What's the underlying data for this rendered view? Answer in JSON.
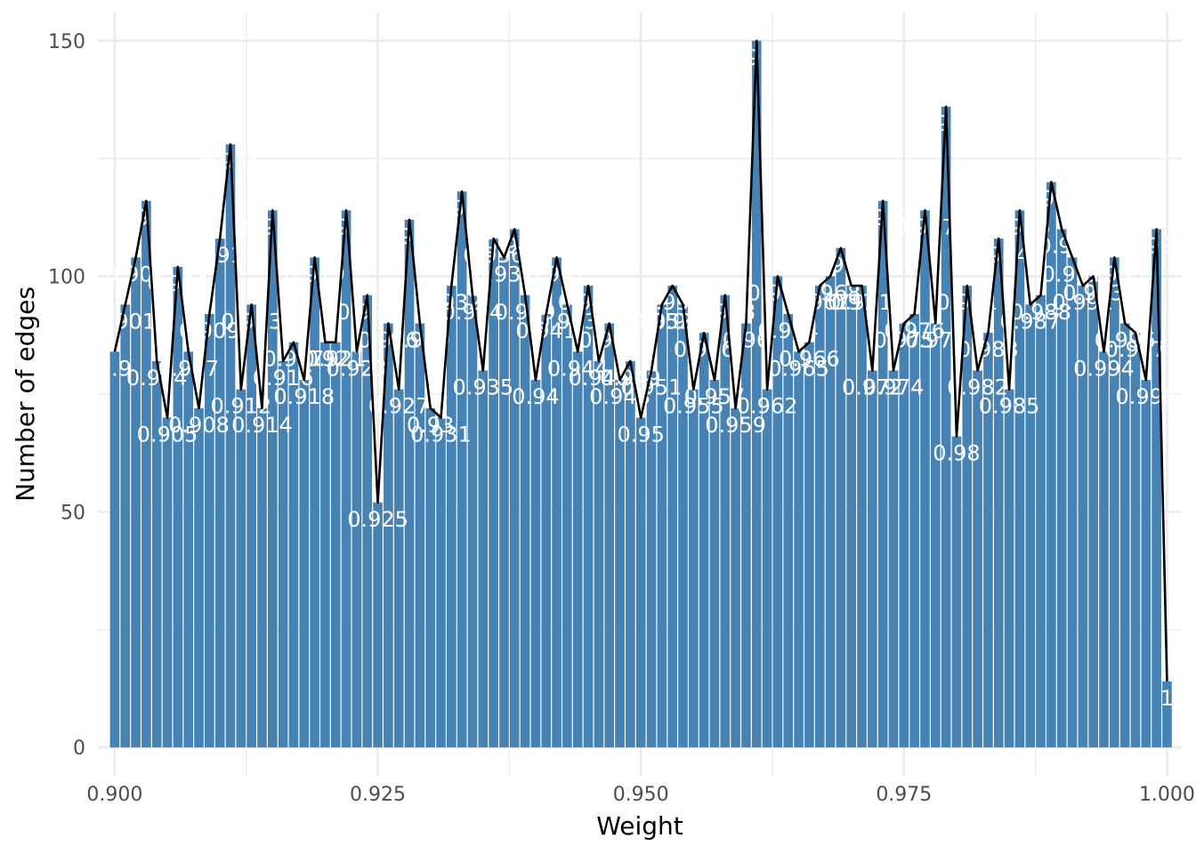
{
  "chart_data": {
    "type": "bar",
    "title": "",
    "xlabel": "Weight",
    "ylabel": "Number of edges",
    "xlim": [
      0.8984,
      1.0014
    ],
    "ylim": [
      -6,
      156
    ],
    "x_ticks": [
      {
        "value": 0.9,
        "label": "0.900"
      },
      {
        "value": 0.925,
        "label": "0.925"
      },
      {
        "value": 0.95,
        "label": "0.950"
      },
      {
        "value": 0.975,
        "label": "0.975"
      },
      {
        "value": 1.0,
        "label": "1.000"
      }
    ],
    "y_ticks": [
      {
        "value": 0,
        "label": "0"
      },
      {
        "value": 50,
        "label": "50"
      },
      {
        "value": 100,
        "label": "100"
      },
      {
        "value": 150,
        "label": "150"
      }
    ],
    "grid": true,
    "bar_color": "#4682B4",
    "line_color": "#000000",
    "label_color": "#FFFFFF",
    "x": [
      0.9,
      0.901,
      0.902,
      0.903,
      0.904,
      0.905,
      0.906,
      0.907,
      0.908,
      0.909,
      0.91,
      0.911,
      0.912,
      0.913,
      0.914,
      0.915,
      0.916,
      0.917,
      0.918,
      0.919,
      0.92,
      0.921,
      0.922,
      0.923,
      0.924,
      0.925,
      0.926,
      0.927,
      0.928,
      0.929,
      0.93,
      0.931,
      0.932,
      0.933,
      0.934,
      0.935,
      0.936,
      0.937,
      0.938,
      0.939,
      0.94,
      0.941,
      0.942,
      0.943,
      0.944,
      0.945,
      0.946,
      0.947,
      0.948,
      0.949,
      0.95,
      0.951,
      0.952,
      0.953,
      0.954,
      0.955,
      0.956,
      0.957,
      0.958,
      0.959,
      0.96,
      0.961,
      0.962,
      0.963,
      0.964,
      0.965,
      0.966,
      0.967,
      0.968,
      0.969,
      0.97,
      0.971,
      0.972,
      0.973,
      0.974,
      0.975,
      0.976,
      0.977,
      0.978,
      0.979,
      0.98,
      0.981,
      0.982,
      0.983,
      0.984,
      0.985,
      0.986,
      0.987,
      0.988,
      0.989,
      0.99,
      0.991,
      0.992,
      0.993,
      0.994,
      0.995,
      0.996,
      0.997,
      0.998,
      0.999,
      1.0
    ],
    "values": [
      84,
      94,
      104,
      116,
      82,
      70,
      102,
      84,
      72,
      92,
      108,
      128,
      76,
      94,
      72,
      114,
      82,
      86,
      78,
      104,
      86,
      86,
      114,
      84,
      96,
      52,
      90,
      76,
      112,
      90,
      72,
      70,
      98,
      118,
      96,
      80,
      108,
      104,
      110,
      96,
      78,
      92,
      104,
      94,
      84,
      98,
      82,
      90,
      78,
      82,
      70,
      80,
      94,
      98,
      94,
      76,
      88,
      78,
      96,
      72,
      90,
      150,
      76,
      100,
      92,
      84,
      86,
      98,
      100,
      106,
      98,
      98,
      80,
      116,
      80,
      90,
      92,
      114,
      90,
      136,
      66,
      98,
      80,
      88,
      108,
      76,
      114,
      94,
      96,
      120,
      110,
      104,
      98,
      100,
      84,
      104,
      90,
      88,
      78,
      110,
      14
    ],
    "labels": [
      "0.9",
      "0.901",
      "0.902",
      "0.903",
      "0.904",
      "0.905",
      "0.906",
      "0.907",
      "0.908",
      "0.909",
      "0.91",
      "0.911",
      "0.912",
      "0.913",
      "0.914",
      "0.915",
      "0.916",
      "0.917",
      "0.918",
      "0.919",
      "0.92",
      "0.921",
      "0.922",
      "0.923",
      "0.924",
      "0.925",
      "0.926",
      "0.927",
      "0.928",
      "0.929",
      "0.93",
      "0.931",
      "0.932",
      "0.933",
      "0.934",
      "0.935",
      "0.936",
      "0.937",
      "0.938",
      "0.939",
      "0.94",
      "0.941",
      "0.942",
      "0.943",
      "0.944",
      "0.945",
      "0.946",
      "0.947",
      "0.948",
      "0.949",
      "0.95",
      "0.951",
      "0.952",
      "0.953",
      "0.954",
      "0.955",
      "0.956",
      "0.957",
      "0.958",
      "0.959",
      "0.96",
      "0.961",
      "0.962",
      "0.963",
      "0.964",
      "0.965",
      "0.966",
      "0.967",
      "0.968",
      "0.969",
      "0.97",
      "0.971",
      "0.972",
      "0.973",
      "0.974",
      "0.975",
      "0.976",
      "0.977",
      "0.978",
      "0.979",
      "0.98",
      "0.981",
      "0.982",
      "0.983",
      "0.984",
      "0.985",
      "0.986",
      "0.987",
      "0.988",
      "0.989",
      "0.99",
      "0.991",
      "0.992",
      "0.993",
      "0.994",
      "0.995",
      "0.996",
      "0.997",
      "0.998",
      "0.999",
      "1"
    ]
  }
}
